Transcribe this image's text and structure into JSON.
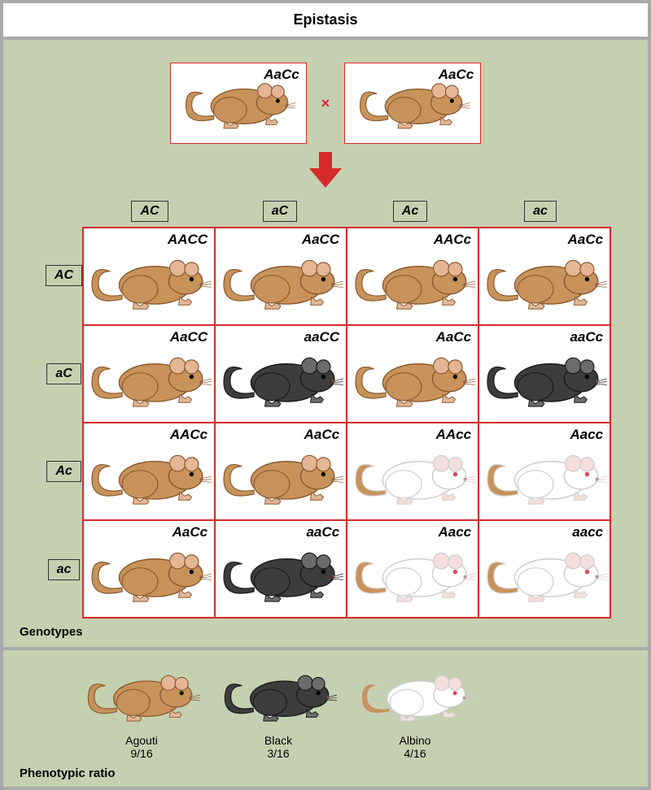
{
  "title": "Epistasis",
  "cross_symbol": "×",
  "parents": [
    {
      "genotype": "AaCc",
      "phenotype": "agouti"
    },
    {
      "genotype": "AaCc",
      "phenotype": "agouti"
    }
  ],
  "gametes_cols": [
    "AC",
    "aC",
    "Ac",
    "ac"
  ],
  "gametes_rows": [
    "AC",
    "aC",
    "Ac",
    "ac"
  ],
  "grid": [
    [
      {
        "g": "AACC",
        "p": "agouti"
      },
      {
        "g": "AaCC",
        "p": "agouti"
      },
      {
        "g": "AACc",
        "p": "agouti"
      },
      {
        "g": "AaCc",
        "p": "agouti"
      }
    ],
    [
      {
        "g": "AaCC",
        "p": "agouti"
      },
      {
        "g": "aaCC",
        "p": "black"
      },
      {
        "g": "AaCc",
        "p": "agouti"
      },
      {
        "g": "aaCc",
        "p": "black"
      }
    ],
    [
      {
        "g": "AACc",
        "p": "agouti"
      },
      {
        "g": "AaCc",
        "p": "agouti"
      },
      {
        "g": "AAcc",
        "p": "albino"
      },
      {
        "g": "Aacc",
        "p": "albino"
      }
    ],
    [
      {
        "g": "AaCc",
        "p": "agouti"
      },
      {
        "g": "aaCc",
        "p": "black"
      },
      {
        "g": "Aacc",
        "p": "albino"
      },
      {
        "g": "aacc",
        "p": "albino"
      }
    ]
  ],
  "section_labels": {
    "genotypes": "Genotypes",
    "ratio": "Phenotypic ratio"
  },
  "ratios": [
    {
      "phenotype": "agouti",
      "name": "Agouti",
      "fraction": "9/16"
    },
    {
      "phenotype": "black",
      "name": "Black",
      "fraction": "3/16"
    },
    {
      "phenotype": "albino",
      "name": "Albino",
      "fraction": "4/16"
    }
  ],
  "colors": {
    "panel_bg": "#c5d0b1",
    "frame_border": "#a9a9a9",
    "cell_border": "#d62a2a",
    "arrow": "#d62a2a",
    "mouse": {
      "agouti_body": "#c8935b",
      "agouti_stroke": "#8a5a2e",
      "agouti_ear": "#e4b696",
      "black_body": "#3d3d3d",
      "black_stroke": "#1a1a1a",
      "black_ear": "#6b6b6b",
      "albino_body": "#ffffff",
      "albino_stroke": "#cccccc",
      "albino_ear": "#f6dede",
      "albino_tail": "#c8935b",
      "eye_dark": "#000000",
      "eye_red": "#d64a5a",
      "nose": "#a86a6a"
    }
  }
}
